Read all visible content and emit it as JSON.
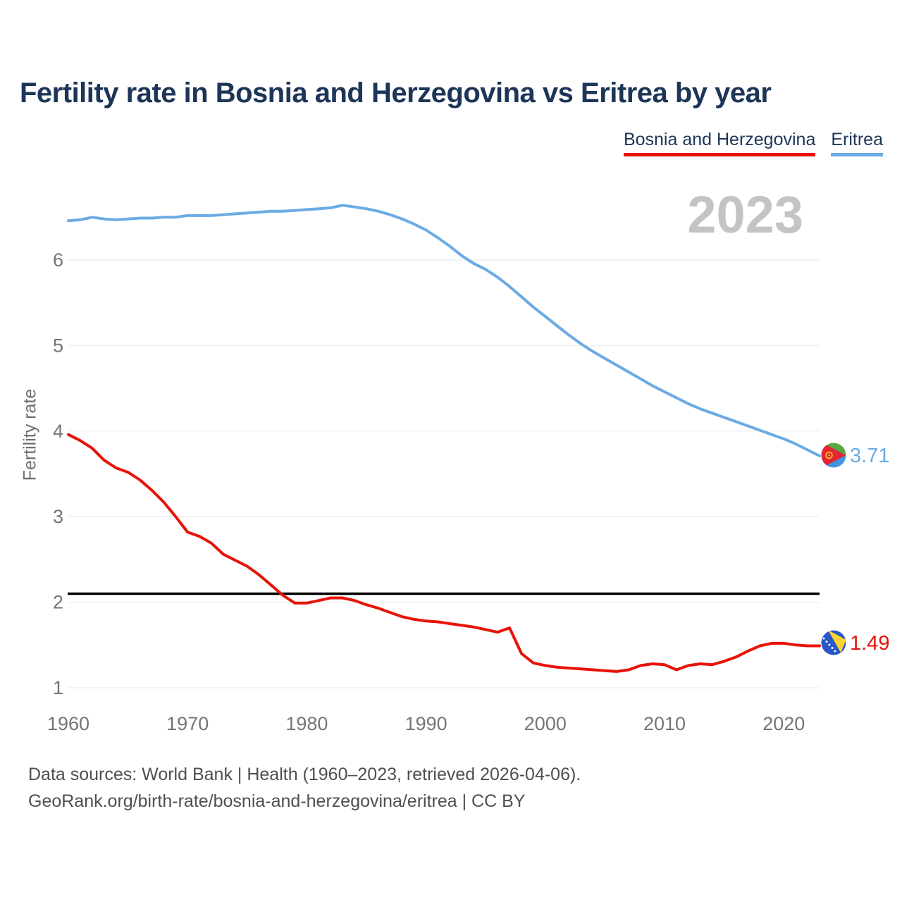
{
  "header": {
    "title": "Fertility rate in Bosnia and Herzegovina vs Eritrea by year",
    "watermark_year": "2023"
  },
  "footer": {
    "line1": "Data sources: World Bank | Health (1960–2023, retrieved 2026-04-06).",
    "line2": "GeoRank.org/birth-rate/bosnia-and-herzegovina/eritrea | CC BY"
  },
  "chart_data": {
    "type": "line",
    "title": "Fertility rate in Bosnia and Herzegovina vs Eritrea by year",
    "xlabel": "",
    "ylabel": "Fertility rate",
    "xlim": [
      1960,
      2023
    ],
    "ylim": [
      1,
      6.9
    ],
    "x_ticks": [
      1960,
      1970,
      1980,
      1990,
      2000,
      2010,
      2020
    ],
    "y_ticks": [
      1,
      2,
      3,
      4,
      5,
      6
    ],
    "grid": "horizontal",
    "legend_position": "top-right",
    "reference_line": {
      "value": 2.1,
      "color": "#000000"
    },
    "series": [
      {
        "name": "Bosnia and Herzegovina",
        "color": "#e81308",
        "final_value_label": "1.49",
        "points": [
          [
            1960,
            3.96
          ],
          [
            1961,
            3.89
          ],
          [
            1962,
            3.8
          ],
          [
            1963,
            3.66
          ],
          [
            1964,
            3.57
          ],
          [
            1965,
            3.52
          ],
          [
            1966,
            3.43
          ],
          [
            1967,
            3.31
          ],
          [
            1968,
            3.17
          ],
          [
            1969,
            3.0
          ],
          [
            1970,
            2.82
          ],
          [
            1971,
            2.77
          ],
          [
            1972,
            2.69
          ],
          [
            1973,
            2.56
          ],
          [
            1974,
            2.49
          ],
          [
            1975,
            2.42
          ],
          [
            1976,
            2.32
          ],
          [
            1977,
            2.2
          ],
          [
            1978,
            2.08
          ],
          [
            1979,
            1.99
          ],
          [
            1980,
            1.99
          ],
          [
            1981,
            2.02
          ],
          [
            1982,
            2.05
          ],
          [
            1983,
            2.05
          ],
          [
            1984,
            2.02
          ],
          [
            1985,
            1.97
          ],
          [
            1986,
            1.93
          ],
          [
            1987,
            1.88
          ],
          [
            1988,
            1.83
          ],
          [
            1989,
            1.8
          ],
          [
            1990,
            1.78
          ],
          [
            1991,
            1.77
          ],
          [
            1992,
            1.75
          ],
          [
            1993,
            1.73
          ],
          [
            1994,
            1.71
          ],
          [
            1995,
            1.68
          ],
          [
            1996,
            1.65
          ],
          [
            1997,
            1.7
          ],
          [
            1998,
            1.4
          ],
          [
            1999,
            1.29
          ],
          [
            2000,
            1.26
          ],
          [
            2001,
            1.24
          ],
          [
            2002,
            1.23
          ],
          [
            2003,
            1.22
          ],
          [
            2004,
            1.21
          ],
          [
            2005,
            1.2
          ],
          [
            2006,
            1.19
          ],
          [
            2007,
            1.21
          ],
          [
            2008,
            1.26
          ],
          [
            2009,
            1.28
          ],
          [
            2010,
            1.27
          ],
          [
            2011,
            1.21
          ],
          [
            2012,
            1.26
          ],
          [
            2013,
            1.28
          ],
          [
            2014,
            1.27
          ],
          [
            2015,
            1.31
          ],
          [
            2016,
            1.36
          ],
          [
            2017,
            1.43
          ],
          [
            2018,
            1.49
          ],
          [
            2019,
            1.52
          ],
          [
            2020,
            1.52
          ],
          [
            2021,
            1.5
          ],
          [
            2022,
            1.49
          ],
          [
            2023,
            1.49
          ]
        ]
      },
      {
        "name": "Eritrea",
        "color": "#6babe4",
        "final_value_label": "3.71",
        "points": [
          [
            1960,
            6.46
          ],
          [
            1961,
            6.47
          ],
          [
            1962,
            6.5
          ],
          [
            1963,
            6.48
          ],
          [
            1964,
            6.47
          ],
          [
            1965,
            6.48
          ],
          [
            1966,
            6.49
          ],
          [
            1967,
            6.49
          ],
          [
            1968,
            6.5
          ],
          [
            1969,
            6.5
          ],
          [
            1970,
            6.52
          ],
          [
            1971,
            6.52
          ],
          [
            1972,
            6.52
          ],
          [
            1973,
            6.53
          ],
          [
            1974,
            6.54
          ],
          [
            1975,
            6.55
          ],
          [
            1976,
            6.56
          ],
          [
            1977,
            6.57
          ],
          [
            1978,
            6.57
          ],
          [
            1979,
            6.58
          ],
          [
            1980,
            6.59
          ],
          [
            1981,
            6.6
          ],
          [
            1982,
            6.61
          ],
          [
            1983,
            6.64
          ],
          [
            1984,
            6.62
          ],
          [
            1985,
            6.6
          ],
          [
            1986,
            6.57
          ],
          [
            1987,
            6.53
          ],
          [
            1988,
            6.48
          ],
          [
            1989,
            6.42
          ],
          [
            1990,
            6.35
          ],
          [
            1991,
            6.26
          ],
          [
            1992,
            6.16
          ],
          [
            1993,
            6.05
          ],
          [
            1994,
            5.96
          ],
          [
            1995,
            5.89
          ],
          [
            1996,
            5.8
          ],
          [
            1997,
            5.69
          ],
          [
            1998,
            5.57
          ],
          [
            1999,
            5.45
          ],
          [
            2000,
            5.34
          ],
          [
            2001,
            5.23
          ],
          [
            2002,
            5.12
          ],
          [
            2003,
            5.02
          ],
          [
            2004,
            4.93
          ],
          [
            2005,
            4.85
          ],
          [
            2006,
            4.77
          ],
          [
            2007,
            4.69
          ],
          [
            2008,
            4.61
          ],
          [
            2009,
            4.53
          ],
          [
            2010,
            4.46
          ],
          [
            2011,
            4.39
          ],
          [
            2012,
            4.32
          ],
          [
            2013,
            4.26
          ],
          [
            2014,
            4.21
          ],
          [
            2015,
            4.16
          ],
          [
            2016,
            4.11
          ],
          [
            2017,
            4.06
          ],
          [
            2018,
            4.01
          ],
          [
            2019,
            3.96
          ],
          [
            2020,
            3.91
          ],
          [
            2021,
            3.85
          ],
          [
            2022,
            3.78
          ],
          [
            2023,
            3.71
          ]
        ]
      }
    ]
  }
}
